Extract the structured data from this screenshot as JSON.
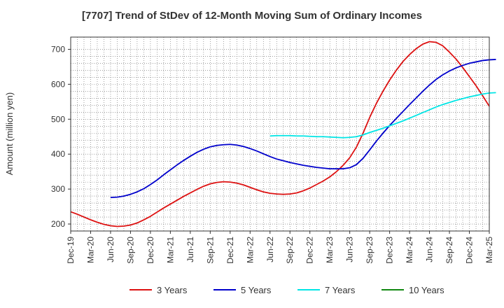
{
  "chart_data": {
    "type": "line",
    "title": "[7707]  Trend of StDev of 12-Month Moving Sum of Ordinary Incomes",
    "xlabel": "",
    "ylabel": "Amount (million yen)",
    "ylim": [
      180,
      735
    ],
    "yticks": [
      200,
      300,
      400,
      500,
      600,
      700
    ],
    "grid": true,
    "legend_position": "bottom",
    "x_tick_labels": [
      "Dec-19",
      "Mar-20",
      "Jun-20",
      "Sep-20",
      "Dec-20",
      "Mar-21",
      "Jun-21",
      "Sep-21",
      "Dec-21",
      "Mar-22",
      "Jun-22",
      "Sep-22",
      "Dec-22",
      "Mar-23",
      "Jun-23",
      "Sep-23",
      "Dec-23",
      "Mar-24",
      "Jun-24",
      "Sep-24",
      "Dec-24",
      "Mar-25"
    ],
    "x_unit": "month",
    "x_start": "Dec-19",
    "series": [
      {
        "name": "3 Years",
        "color": "#dd1111",
        "start": "Dec-19",
        "values": [
          235,
          228,
          220,
          212,
          205,
          199,
          195,
          193,
          194,
          197,
          203,
          212,
          222,
          234,
          246,
          257,
          268,
          279,
          289,
          299,
          308,
          315,
          319,
          321,
          320,
          317,
          312,
          305,
          298,
          292,
          288,
          286,
          285,
          286,
          289,
          295,
          303,
          313,
          323,
          335,
          350,
          368,
          390,
          420,
          460,
          505,
          545,
          580,
          612,
          640,
          665,
          685,
          702,
          715,
          722,
          720,
          710,
          692,
          672,
          648,
          622,
          596,
          567,
          537
        ]
      },
      {
        "name": "5 Years",
        "color": "#0000cc",
        "start": "Jun-20",
        "values": [
          276,
          277,
          280,
          285,
          292,
          301,
          313,
          326,
          341,
          355,
          369,
          382,
          394,
          405,
          414,
          421,
          425,
          427,
          428,
          426,
          422,
          416,
          409,
          401,
          393,
          386,
          381,
          376,
          372,
          368,
          365,
          362,
          360,
          358,
          358,
          358,
          361,
          370,
          388,
          412,
          437,
          460,
          482,
          502,
          522,
          542,
          561,
          580,
          598,
          614,
          627,
          638,
          647,
          654,
          660,
          664,
          668,
          670,
          671
        ]
      },
      {
        "name": "7 Years",
        "color": "#00e5e5",
        "start": "Jun-22",
        "values": [
          452,
          453,
          453,
          453,
          452,
          452,
          451,
          450,
          450,
          449,
          448,
          447,
          448,
          450,
          455,
          462,
          468,
          474,
          481,
          488,
          495,
          503,
          511,
          519,
          527,
          535,
          542,
          548,
          554,
          559,
          564,
          568,
          572,
          575,
          576
        ]
      },
      {
        "name": "10 Years",
        "color": "#118811",
        "start": "Dec-24",
        "values": []
      }
    ]
  }
}
